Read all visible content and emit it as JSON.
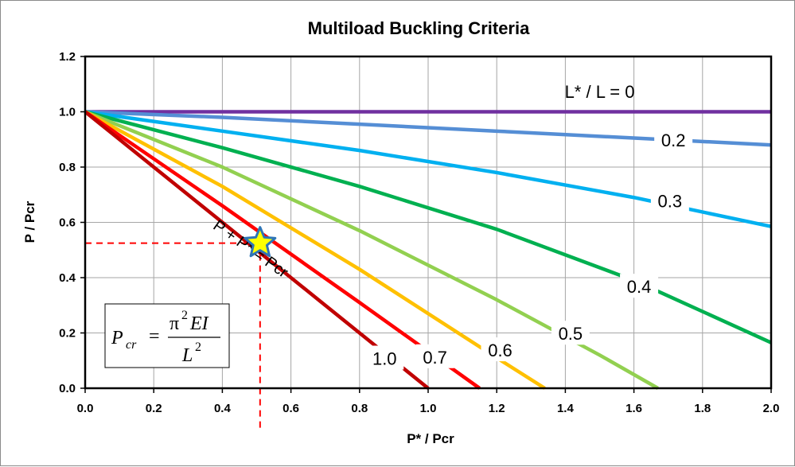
{
  "chart_data": {
    "type": "line",
    "title": "Multiload Buckling Criteria",
    "xlabel": "P* / Pcr",
    "ylabel": "P / Pcr",
    "xlim": [
      0,
      2.0
    ],
    "ylim": [
      0,
      1.2
    ],
    "x_ticks": [
      "0.0",
      "0.2",
      "0.4",
      "0.6",
      "0.8",
      "1.0",
      "1.2",
      "1.4",
      "1.6",
      "1.8",
      "2.0"
    ],
    "y_ticks": [
      "0.0",
      "0.2",
      "0.4",
      "0.6",
      "0.8",
      "1.0",
      "1.2"
    ],
    "grid": true,
    "legend_title": "L* / L = 0",
    "series": [
      {
        "name": "0",
        "label": "L* / L = 0",
        "color": "#7030a0",
        "points": [
          [
            0,
            1.0
          ],
          [
            2.0,
            1.0
          ]
        ]
      },
      {
        "name": "0.2",
        "label": "0.2",
        "color": "#558ed5",
        "points": [
          [
            0,
            1.0
          ],
          [
            0.4,
            0.98
          ],
          [
            0.8,
            0.955
          ],
          [
            1.2,
            0.93
          ],
          [
            1.6,
            0.905
          ],
          [
            2.0,
            0.88
          ]
        ]
      },
      {
        "name": "0.3",
        "label": "0.3",
        "color": "#00b0f0",
        "points": [
          [
            0,
            1.0
          ],
          [
            0.4,
            0.93
          ],
          [
            0.8,
            0.86
          ],
          [
            1.2,
            0.78
          ],
          [
            1.6,
            0.69
          ],
          [
            2.0,
            0.585
          ]
        ]
      },
      {
        "name": "0.4",
        "label": "0.4",
        "color": "#00b050",
        "points": [
          [
            0,
            1.0
          ],
          [
            0.4,
            0.87
          ],
          [
            0.8,
            0.73
          ],
          [
            1.2,
            0.575
          ],
          [
            1.6,
            0.39
          ],
          [
            2.0,
            0.165
          ]
        ]
      },
      {
        "name": "0.5",
        "label": "0.5",
        "color": "#92d050",
        "points": [
          [
            0,
            1.0
          ],
          [
            0.4,
            0.8
          ],
          [
            0.8,
            0.57
          ],
          [
            1.2,
            0.32
          ],
          [
            1.5,
            0.12
          ],
          [
            1.67,
            0.0
          ]
        ]
      },
      {
        "name": "0.6",
        "label": "0.6",
        "color": "#ffc000",
        "points": [
          [
            0,
            1.0
          ],
          [
            0.4,
            0.73
          ],
          [
            0.8,
            0.43
          ],
          [
            1.2,
            0.11
          ],
          [
            1.34,
            0.0
          ]
        ]
      },
      {
        "name": "0.7",
        "label": "0.7",
        "color": "#ff0000",
        "points": [
          [
            0,
            1.0
          ],
          [
            0.4,
            0.66
          ],
          [
            0.8,
            0.31
          ],
          [
            1.15,
            0.0
          ]
        ]
      },
      {
        "name": "1.0",
        "label": "1.0",
        "color": "#c00000",
        "points": [
          [
            0,
            1.0
          ],
          [
            1.0,
            0.0
          ]
        ]
      }
    ],
    "annotations": {
      "line_label": "P + P* = Pcr",
      "marker_point": [
        0.51,
        0.525
      ],
      "formula": {
        "lhs": "P",
        "lhs_sub": "cr",
        "numerator": "π",
        "numerator_sup": "2",
        "numerator_rest": "EI",
        "denominator": "L",
        "denominator_sup": "2"
      }
    }
  }
}
